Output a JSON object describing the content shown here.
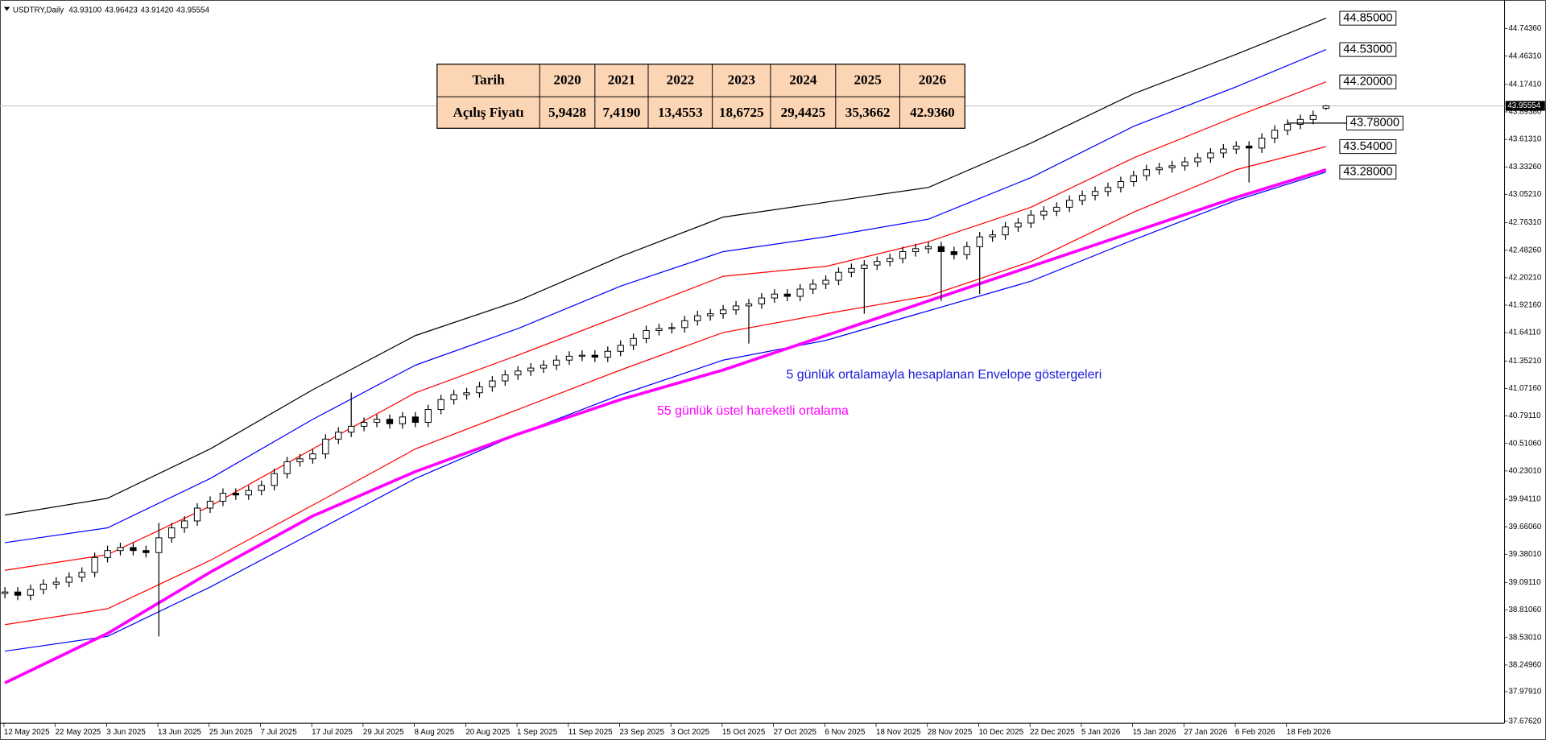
{
  "chart_data": {
    "type": "candlestick",
    "title": "USDTRY,Daily",
    "title_values": [
      "43.93100",
      "43.96423",
      "43.91420",
      "43.95554"
    ],
    "categories": [
      "12 May 2025",
      null,
      null,
      null,
      "22 May 2025",
      null,
      null,
      null,
      "3 Jun 2025",
      null,
      null,
      null,
      "13 Jun 2025",
      null,
      null,
      null,
      "25 Jun 2025",
      null,
      null,
      null,
      "7 Jul 2025",
      null,
      null,
      null,
      "17 Jul 2025",
      null,
      null,
      null,
      "29 Jul 2025",
      null,
      null,
      null,
      "8 Aug 2025",
      null,
      null,
      null,
      "20 Aug 2025",
      null,
      null,
      null,
      "1 Sep 2025",
      null,
      null,
      null,
      "11 Sep 2025",
      null,
      null,
      null,
      "23 Sep 2025",
      null,
      null,
      null,
      "3 Oct 2025",
      null,
      null,
      null,
      "15 Oct 2025",
      null,
      null,
      null,
      "27 Oct 2025",
      null,
      null,
      null,
      "6 Nov 2025",
      null,
      null,
      null,
      "18 Nov 2025",
      null,
      null,
      null,
      "28 Nov 2025",
      null,
      null,
      null,
      "10 Dec 2025",
      null,
      null,
      null,
      "22 Dec 2025",
      null,
      null,
      null,
      "5 Jan 2026",
      null,
      null,
      null,
      "15 Jan 2026",
      null,
      null,
      null,
      "27 Jan 2026",
      null,
      null,
      null,
      "6 Feb 2026",
      null,
      null,
      null,
      "18 Feb 2026",
      null,
      null,
      null
    ],
    "open": [
      38.98,
      38.995,
      38.962,
      39.021,
      39.075,
      39.095,
      39.146,
      39.196,
      39.347,
      39.418,
      39.448,
      39.418,
      39.397,
      39.548,
      39.649,
      39.72,
      39.851,
      39.921,
      40.002,
      39.985,
      40.031,
      40.082,
      40.203,
      40.324,
      40.354,
      40.404,
      40.555,
      40.626,
      40.686,
      40.726,
      40.757,
      40.712,
      40.781,
      40.726,
      40.857,
      40.958,
      41.008,
      41.028,
      41.089,
      41.149,
      41.21,
      41.25,
      41.28,
      41.31,
      41.361,
      41.401,
      41.411,
      41.391,
      41.451,
      41.512,
      41.582,
      41.663,
      41.683,
      41.693,
      41.763,
      41.814,
      41.834,
      41.874,
      41.914,
      41.935,
      41.995,
      42.035,
      42.012,
      42.086,
      42.136,
      42.176,
      42.257,
      42.297,
      42.331,
      42.368,
      42.398,
      42.468,
      42.498,
      42.519,
      42.468,
      42.438,
      42.519,
      42.619,
      42.639,
      42.72,
      42.76,
      42.841,
      42.881,
      42.921,
      42.992,
      43.042,
      43.082,
      43.123,
      43.183,
      43.243,
      43.304,
      43.324,
      43.344,
      43.384,
      43.425,
      43.475,
      43.515,
      43.545,
      43.525,
      43.626,
      43.707,
      43.767,
      43.817,
      43.931
    ],
    "high": [
      39.045,
      39.045,
      39.071,
      39.125,
      39.145,
      39.196,
      39.246,
      39.397,
      39.468,
      39.498,
      39.498,
      39.468,
      39.7,
      39.699,
      39.77,
      39.901,
      39.971,
      40.052,
      40.052,
      40.081,
      40.132,
      40.253,
      40.374,
      40.404,
      40.454,
      40.605,
      40.676,
      41.03,
      40.776,
      40.807,
      40.807,
      40.831,
      40.831,
      40.907,
      41.008,
      41.058,
      41.078,
      41.139,
      41.199,
      41.26,
      41.3,
      41.33,
      41.36,
      41.411,
      41.451,
      41.461,
      41.461,
      41.501,
      41.562,
      41.632,
      41.713,
      41.733,
      41.743,
      41.813,
      41.864,
      41.884,
      41.924,
      41.964,
      41.985,
      42.045,
      42.085,
      42.085,
      42.136,
      42.186,
      42.226,
      42.307,
      42.347,
      42.381,
      42.418,
      42.448,
      42.518,
      42.548,
      42.569,
      42.569,
      42.518,
      42.569,
      42.669,
      42.689,
      42.77,
      42.81,
      42.891,
      42.931,
      42.971,
      43.042,
      43.092,
      43.132,
      43.173,
      43.233,
      43.293,
      43.354,
      43.374,
      43.394,
      43.434,
      43.475,
      43.525,
      43.565,
      43.595,
      43.595,
      43.676,
      43.757,
      43.817,
      43.867,
      43.908,
      43.96423
    ],
    "low": [
      38.93,
      38.912,
      38.912,
      38.971,
      39.025,
      39.045,
      39.096,
      39.146,
      39.297,
      39.368,
      39.368,
      39.347,
      38.542,
      39.498,
      39.599,
      39.67,
      39.801,
      39.871,
      39.935,
      39.935,
      39.981,
      40.032,
      40.153,
      40.274,
      40.304,
      40.354,
      40.505,
      40.576,
      40.636,
      40.676,
      40.662,
      40.662,
      40.676,
      40.676,
      40.807,
      40.908,
      40.958,
      40.978,
      41.039,
      41.099,
      41.16,
      41.2,
      41.23,
      41.26,
      41.311,
      41.351,
      41.341,
      41.341,
      41.401,
      41.462,
      41.532,
      41.613,
      41.633,
      41.643,
      41.713,
      41.764,
      41.784,
      41.824,
      41.53,
      41.885,
      41.945,
      41.962,
      41.962,
      42.036,
      42.086,
      42.126,
      42.207,
      41.834,
      42.281,
      42.318,
      42.348,
      42.418,
      42.448,
      41.965,
      42.388,
      42.388,
      42.035,
      42.569,
      42.589,
      42.67,
      42.71,
      42.791,
      42.831,
      42.871,
      42.942,
      42.992,
      43.032,
      43.073,
      43.133,
      43.193,
      43.254,
      43.274,
      43.294,
      43.334,
      43.375,
      43.425,
      43.465,
      43.173,
      43.475,
      43.576,
      43.657,
      43.717,
      43.767,
      43.9142
    ],
    "close": [
      38.995,
      38.962,
      39.021,
      39.075,
      39.095,
      39.146,
      39.196,
      39.347,
      39.418,
      39.448,
      39.418,
      39.397,
      39.548,
      39.649,
      39.72,
      39.851,
      39.921,
      40.002,
      39.985,
      40.031,
      40.082,
      40.203,
      40.324,
      40.354,
      40.404,
      40.555,
      40.626,
      40.686,
      40.726,
      40.757,
      40.712,
      40.781,
      40.726,
      40.857,
      40.958,
      41.008,
      41.028,
      41.089,
      41.149,
      41.21,
      41.25,
      41.28,
      41.31,
      41.361,
      41.401,
      41.411,
      41.391,
      41.451,
      41.512,
      41.582,
      41.663,
      41.683,
      41.693,
      41.763,
      41.814,
      41.834,
      41.874,
      41.914,
      41.935,
      41.995,
      42.035,
      42.012,
      42.086,
      42.136,
      42.176,
      42.257,
      42.297,
      42.331,
      42.368,
      42.398,
      42.468,
      42.498,
      42.519,
      42.468,
      42.438,
      42.519,
      42.619,
      42.639,
      42.72,
      42.76,
      42.841,
      42.881,
      42.921,
      42.992,
      43.042,
      43.082,
      43.123,
      43.183,
      43.243,
      43.304,
      43.324,
      43.344,
      43.384,
      43.425,
      43.475,
      43.515,
      43.545,
      43.525,
      43.626,
      43.707,
      43.767,
      43.817,
      43.858,
      43.95554
    ],
    "lines": [
      {
        "color": "#000000",
        "width": 1,
        "x": [
          0,
          8,
          16,
          24,
          32,
          40,
          48,
          56,
          64,
          72,
          80,
          88,
          96,
          103
        ],
        "values": [
          39.78,
          39.951,
          40.455,
          41.059,
          41.612,
          41.965,
          42.418,
          42.821,
          42.972,
          43.123,
          43.576,
          44.079,
          44.482,
          44.85
        ],
        "value_labels": [
          null,
          null,
          null,
          null,
          null,
          null,
          null,
          null,
          null,
          null,
          null,
          null,
          null,
          "44.85000"
        ]
      },
      {
        "color": "#0000ff",
        "width": 1,
        "x": [
          0,
          8,
          16,
          24,
          32,
          40,
          48,
          56,
          64,
          72,
          80,
          88,
          96,
          103
        ],
        "values": [
          39.498,
          39.649,
          40.153,
          40.757,
          41.31,
          41.683,
          42.116,
          42.468,
          42.619,
          42.8,
          43.223,
          43.747,
          44.15,
          44.53
        ],
        "value_labels": [
          null,
          null,
          null,
          null,
          null,
          null,
          null,
          null,
          null,
          null,
          null,
          null,
          null,
          "44.53000"
        ]
      },
      {
        "color": "#ff0000",
        "width": 1,
        "x": [
          0,
          8,
          16,
          24,
          32,
          40,
          48,
          56,
          64,
          72,
          80,
          88,
          96,
          103
        ],
        "values": [
          39.216,
          39.377,
          39.871,
          40.455,
          41.028,
          41.411,
          41.814,
          42.217,
          42.317,
          42.569,
          42.921,
          43.425,
          43.848,
          44.2
        ],
        "value_labels": [
          null,
          null,
          null,
          null,
          null,
          null,
          null,
          null,
          null,
          null,
          null,
          null,
          null,
          "44.20000"
        ]
      },
      {
        "color": "#ff0000",
        "width": 1,
        "x": [
          0,
          8,
          16,
          24,
          32,
          40,
          48,
          56,
          64,
          72,
          80,
          88,
          96,
          103
        ],
        "values": [
          38.662,
          38.824,
          39.317,
          39.881,
          40.455,
          40.857,
          41.26,
          41.643,
          41.834,
          42.015,
          42.368,
          42.871,
          43.304,
          43.54
        ],
        "value_labels": [
          null,
          null,
          null,
          null,
          null,
          null,
          null,
          null,
          null,
          null,
          null,
          null,
          null,
          "43.54000"
        ]
      },
      {
        "color": "#0000ff",
        "width": 1,
        "x": [
          0,
          8,
          16,
          24,
          32,
          40,
          48,
          56,
          64,
          72,
          80,
          88,
          96,
          103
        ],
        "values": [
          38.391,
          38.542,
          39.045,
          39.599,
          40.153,
          40.606,
          41.008,
          41.361,
          41.562,
          41.864,
          42.166,
          42.589,
          42.992,
          43.28
        ],
        "value_labels": [
          null,
          null,
          null,
          null,
          null,
          null,
          null,
          null,
          null,
          null,
          null,
          null,
          null,
          "43.28000"
        ]
      },
      {
        "color": "#ff00ff",
        "width": 3,
        "x": [
          0,
          8,
          16,
          24,
          32,
          40,
          48,
          56,
          64,
          72,
          80,
          88,
          96,
          103
        ],
        "values": [
          38.068,
          38.572,
          39.196,
          39.77,
          40.223,
          40.606,
          40.958,
          41.26,
          41.612,
          41.965,
          42.317,
          42.67,
          43.022,
          43.304
        ]
      }
    ],
    "level": {
      "value": 43.78,
      "label": "43.78000"
    },
    "last_price": {
      "value": 43.95554,
      "label": "43.95554"
    },
    "ylim": [
      37.656,
      44.955
    ],
    "yticks": [
      {
        "value": 44.7436,
        "label": "44.74360"
      },
      {
        "value": 44.4631,
        "label": "44.46310"
      },
      {
        "value": 44.1741,
        "label": "44.17410"
      },
      {
        "value": 43.8938,
        "label": "43.89380"
      },
      {
        "value": 43.6131,
        "label": "43.61310"
      },
      {
        "value": 43.3326,
        "label": "43.33260"
      },
      {
        "value": 43.0521,
        "label": "43.05210"
      },
      {
        "value": 42.7631,
        "label": "42.76310"
      },
      {
        "value": 42.4826,
        "label": "42.48260"
      },
      {
        "value": 42.2021,
        "label": "42.20210"
      },
      {
        "value": 41.9216,
        "label": "41.92160"
      },
      {
        "value": 41.6411,
        "label": "41.64110"
      },
      {
        "value": 41.3521,
        "label": "41.35210"
      },
      {
        "value": 41.0716,
        "label": "41.07160"
      },
      {
        "value": 40.7911,
        "label": "40.79110"
      },
      {
        "value": 40.5106,
        "label": "40.51060"
      },
      {
        "value": 40.2301,
        "label": "40.23010"
      },
      {
        "value": 39.9411,
        "label": "39.94110"
      },
      {
        "value": 39.6606,
        "label": "39.66060"
      },
      {
        "value": 39.3801,
        "label": "39.38010"
      },
      {
        "value": 39.0911,
        "label": "39.09110"
      },
      {
        "value": 38.8106,
        "label": "38.81060"
      },
      {
        "value": 38.5301,
        "label": "38.53010"
      },
      {
        "value": 38.2496,
        "label": "38.24960"
      },
      {
        "value": 37.9791,
        "label": "37.97910"
      },
      {
        "value": 37.6762,
        "label": "37.67620"
      }
    ],
    "annotations": [
      {
        "text": "5 günlük ortalamayla hesaplanan Envelope göstergeleri",
        "color": "#1a1adc"
      },
      {
        "text": "55 günlük üstel hareketli ortalama",
        "color": "#ff00ff"
      }
    ]
  },
  "table": {
    "header": [
      "Tarih",
      "2020",
      "2021",
      "2022",
      "2023",
      "2024",
      "2025",
      "2026"
    ],
    "rows": [
      [
        "Açılış Fiyatı",
        "5,9428",
        "7,4190",
        "13,4553",
        "18,6725",
        "29,4425",
        "35,3662",
        "42.9360"
      ]
    ]
  }
}
